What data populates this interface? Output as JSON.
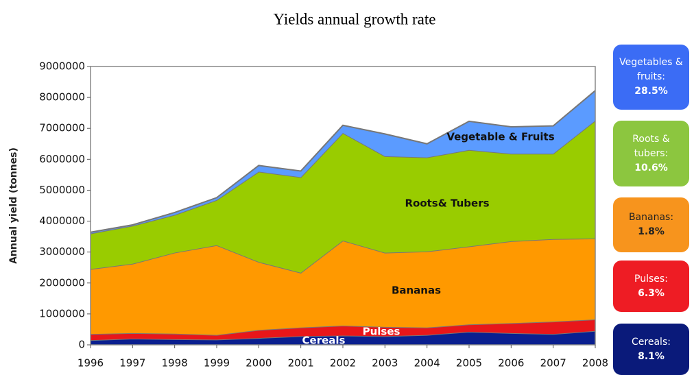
{
  "chart_data": {
    "type": "stacked_area",
    "title": "Yields annual growth rate",
    "ylabel": "Annual yield (tonnes)",
    "x": [
      1996,
      1997,
      1998,
      1999,
      2000,
      2001,
      2002,
      2003,
      2004,
      2005,
      2006,
      2007,
      2008
    ],
    "xlim": [
      1996,
      2008
    ],
    "ylim": [
      0,
      9000000
    ],
    "yticks": [
      0,
      1000000,
      2000000,
      3000000,
      4000000,
      5000000,
      6000000,
      7000000,
      8000000,
      9000000
    ],
    "series": [
      {
        "name": "Cereals",
        "color": "#0a1f8f",
        "values": [
          150000,
          200000,
          180000,
          170000,
          220000,
          280000,
          300000,
          280000,
          320000,
          420000,
          380000,
          350000,
          450000
        ]
      },
      {
        "name": "Pulses",
        "color": "#e8161a",
        "values": [
          200000,
          180000,
          180000,
          150000,
          260000,
          280000,
          320000,
          300000,
          240000,
          240000,
          320000,
          400000,
          370000
        ]
      },
      {
        "name": "Bananas",
        "color": "#ff9900",
        "values": [
          2100000,
          2240000,
          2620000,
          2900000,
          2200000,
          1770000,
          2750000,
          2400000,
          2460000,
          2520000,
          2650000,
          2670000,
          2620000
        ]
      },
      {
        "name": "Roots& Tubers",
        "color": "#99cc00",
        "values": [
          1150000,
          1230000,
          1220000,
          1460000,
          2920000,
          3090000,
          3480000,
          3120000,
          3040000,
          3120000,
          2830000,
          2760000,
          3810000
        ]
      },
      {
        "name": "Vegetable & Fruits",
        "color": "#5b9bff",
        "values": [
          40000,
          30000,
          80000,
          80000,
          200000,
          200000,
          250000,
          720000,
          440000,
          930000,
          870000,
          900000,
          970000
        ]
      }
    ],
    "growth_boxes": [
      {
        "label": "Vegetables & fruits:",
        "value": 28.5,
        "value_label": "28.5%",
        "color": "#3b6cf5",
        "text_color": "#ffffff"
      },
      {
        "label": "Roots & tubers:",
        "value": 10.6,
        "value_label": "10.6%",
        "color": "#8cc63f",
        "text_color": "#ffffff"
      },
      {
        "label": "Bananas:",
        "value": 1.8,
        "value_label": "1.8%",
        "color": "#f7941d",
        "text_color": "#222222"
      },
      {
        "label": "Pulses:",
        "value": 6.3,
        "value_label": "6.3%",
        "color": "#ee1c24",
        "text_color": "#ffffff"
      },
      {
        "label": "Cereals:",
        "value": 8.1,
        "value_label": "8.1%",
        "color": "#0a1a7a",
        "text_color": "#ffffff"
      }
    ]
  }
}
